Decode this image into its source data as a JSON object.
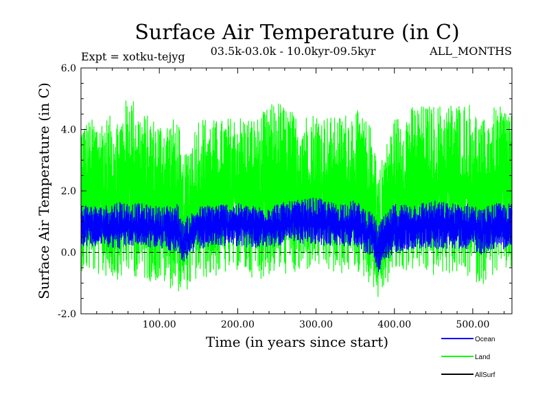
{
  "chart_data": {
    "type": "line",
    "title": "Surface Air Temperature (in C)",
    "subtitle_left": "Expt = xotku-tejyg",
    "subtitle_center": "03.5k-03.0k - 10.0kyr-09.5kyr",
    "subtitle_right": "ALL_MONTHS",
    "xlabel": "Time (in years since start)",
    "ylabel": "Surface Air Temperature (in C)",
    "xlim": [
      0,
      550
    ],
    "ylim": [
      -2.0,
      6.0
    ],
    "x_ticks": [
      100,
      200,
      300,
      400,
      500
    ],
    "x_tick_labels": [
      "100.00",
      "200.00",
      "300.00",
      "400.00",
      "500.00"
    ],
    "y_ticks": [
      -2,
      0,
      2,
      4,
      6
    ],
    "y_tick_labels": [
      "-2.0",
      "0.0",
      "2.0",
      "4.0",
      "6.0"
    ],
    "zero_line": 0.0,
    "series": [
      {
        "name": "Land",
        "color": "#00ff00",
        "x": [
          0,
          25,
          50,
          62,
          75,
          100,
          125,
          128,
          150,
          175,
          200,
          225,
          250,
          275,
          300,
          325,
          350,
          375,
          378,
          400,
          425,
          450,
          475,
          500,
          510,
          525,
          550
        ],
        "max": [
          4.3,
          4.4,
          4.5,
          5.3,
          4.6,
          4.3,
          4.4,
          2.8,
          4.5,
          4.3,
          4.5,
          4.4,
          5.0,
          4.5,
          4.6,
          4.4,
          4.7,
          4.0,
          2.6,
          4.4,
          4.8,
          4.8,
          4.9,
          4.9,
          4.2,
          4.7,
          4.8
        ],
        "min": [
          -0.6,
          -0.8,
          -0.9,
          -0.7,
          -0.9,
          -1.0,
          -1.3,
          -1.4,
          -0.9,
          -0.8,
          -0.6,
          -0.9,
          -0.7,
          -0.8,
          -0.5,
          -0.8,
          -0.6,
          -1.2,
          -1.6,
          -0.7,
          -0.6,
          -0.8,
          -0.7,
          -0.9,
          -1.1,
          -0.8,
          -0.6
        ]
      },
      {
        "name": "Ocean",
        "color": "#0000ff",
        "x": [
          0,
          25,
          50,
          62,
          75,
          100,
          125,
          128,
          150,
          175,
          200,
          225,
          250,
          275,
          300,
          325,
          350,
          375,
          378,
          400,
          425,
          450,
          475,
          500,
          510,
          525,
          550
        ],
        "max": [
          1.6,
          1.5,
          1.7,
          1.6,
          1.6,
          1.5,
          1.6,
          1.0,
          1.5,
          1.6,
          1.6,
          1.5,
          1.6,
          1.7,
          1.8,
          1.6,
          1.7,
          1.2,
          0.9,
          1.6,
          1.6,
          1.7,
          1.6,
          1.6,
          1.4,
          1.6,
          1.6
        ],
        "min": [
          0.2,
          0.2,
          0.1,
          0.2,
          0.2,
          0.1,
          0.0,
          -0.4,
          0.1,
          0.2,
          0.2,
          0.1,
          0.2,
          0.3,
          0.2,
          0.2,
          0.2,
          -0.2,
          -0.8,
          0.0,
          0.1,
          0.1,
          0.1,
          0.1,
          -0.1,
          0.1,
          0.1
        ]
      },
      {
        "name": "AllSurf",
        "color": "#000000",
        "x": [],
        "max": [],
        "min": []
      }
    ],
    "legend": [
      "Ocean",
      "Land",
      "AllSurf"
    ],
    "legend_position": "bottom-right"
  }
}
